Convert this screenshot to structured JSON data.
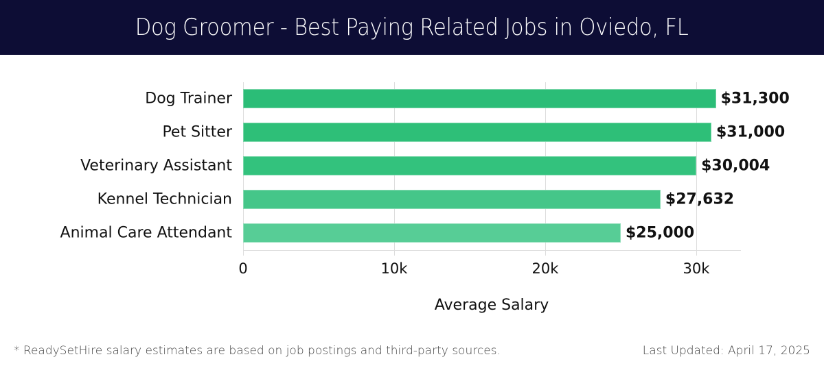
{
  "header": {
    "title": "Dog Groomer - Best Paying Related Jobs in Oviedo, FL"
  },
  "chart_data": {
    "type": "bar",
    "orientation": "horizontal",
    "title": "Dog Groomer - Best Paying Related Jobs in Oviedo, FL",
    "categories": [
      "Dog Trainer",
      "Pet Sitter",
      "Veterinary Assistant",
      "Kennel Technician",
      "Animal Care Attendant"
    ],
    "values": [
      31300,
      31000,
      30004,
      27632,
      25000
    ],
    "value_labels": [
      "$31,300",
      "$31,000",
      "$30,004",
      "$27,632",
      "$25,000"
    ],
    "bar_colors": [
      "#2bbd77",
      "#2ebf78",
      "#33c27d",
      "#45c689",
      "#57cd96"
    ],
    "xlabel": "Average Salary",
    "ylabel": "",
    "xlim": [
      0,
      33000
    ],
    "xticks": [
      0,
      10000,
      20000,
      30000
    ],
    "xtick_labels": [
      "0",
      "10k",
      "20k",
      "30k"
    ],
    "grid": true,
    "legend": null
  },
  "footer": {
    "note": "* ReadySetHire salary estimates are based on job postings and third-party sources.",
    "updated": "Last Updated: April 17, 2025"
  },
  "colors": {
    "header_bg": "#0d0d35",
    "bar_primary": "#2bbd77",
    "grid": "#dddddd"
  }
}
